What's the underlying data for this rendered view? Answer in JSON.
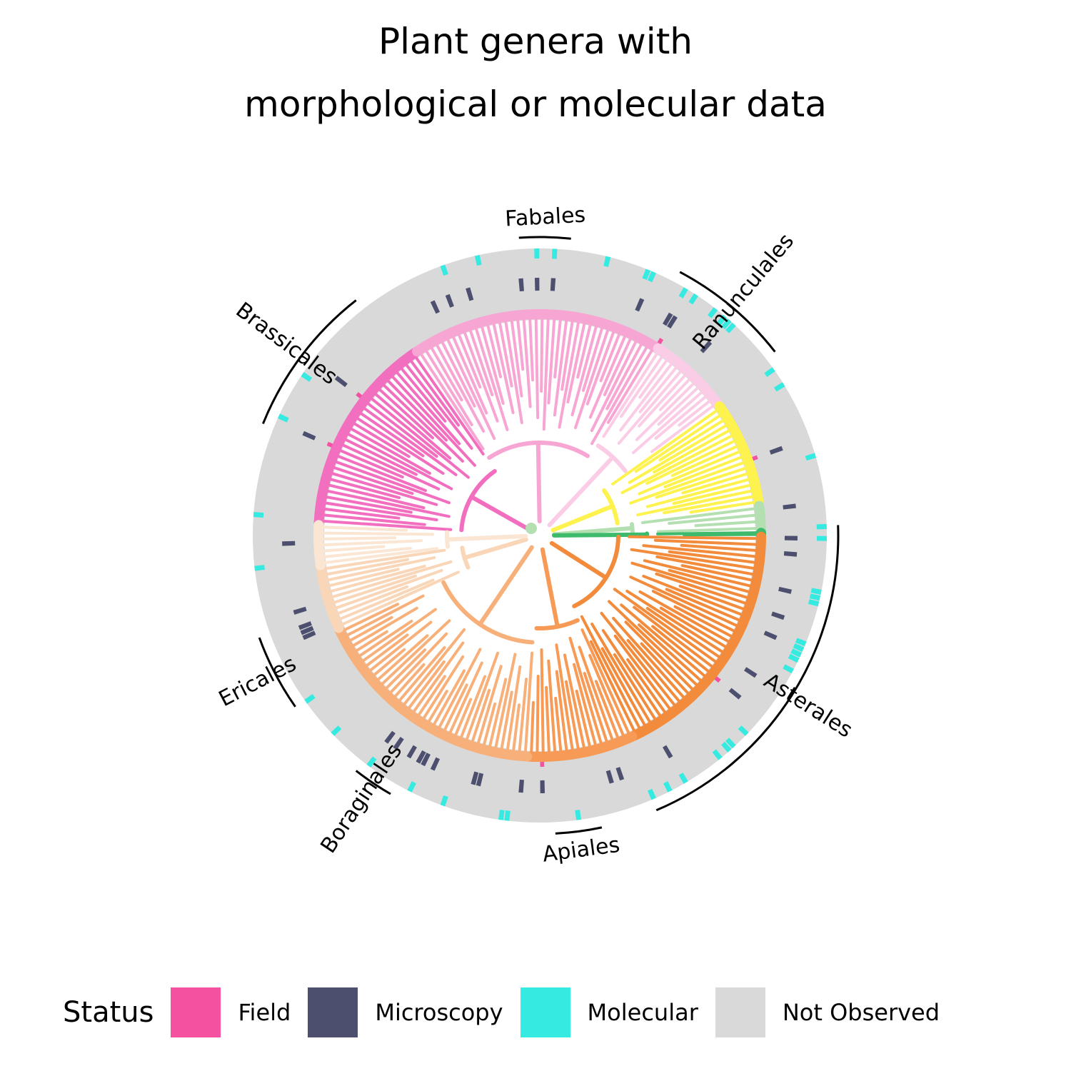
{
  "chart_data": {
    "type": "circular-phylogeny-heatmap",
    "title": "Plant genera with\nmorphological or molecular data",
    "orders": [
      {
        "name": "Fabales",
        "color": "#f7a6d4"
      },
      {
        "name": "Ranunculales",
        "color": "#fbcce6"
      },
      {
        "name": "Brassicales",
        "color": "#f26fbf"
      },
      {
        "name": "Ericales",
        "color": "#fad6b8"
      },
      {
        "name": "Boraginales",
        "color": "#f7b07a"
      },
      {
        "name": "Apiales",
        "color": "#f79a55"
      },
      {
        "name": "Asterales",
        "color": "#f28c3c"
      }
    ],
    "other_clade_colors": [
      "#fbcfe8",
      "#fef24e",
      "#b3dfb1",
      "#3dba6b",
      "#fbe5d3"
    ],
    "legend": {
      "title": "Status",
      "items": [
        {
          "label": "Field",
          "color": "#f451a0"
        },
        {
          "label": "Microscopy",
          "color": "#4d4f6e"
        },
        {
          "label": "Molecular",
          "color": "#35ebe1"
        },
        {
          "label": "Not Observed",
          "color": "#d9d9d9"
        }
      ]
    }
  }
}
